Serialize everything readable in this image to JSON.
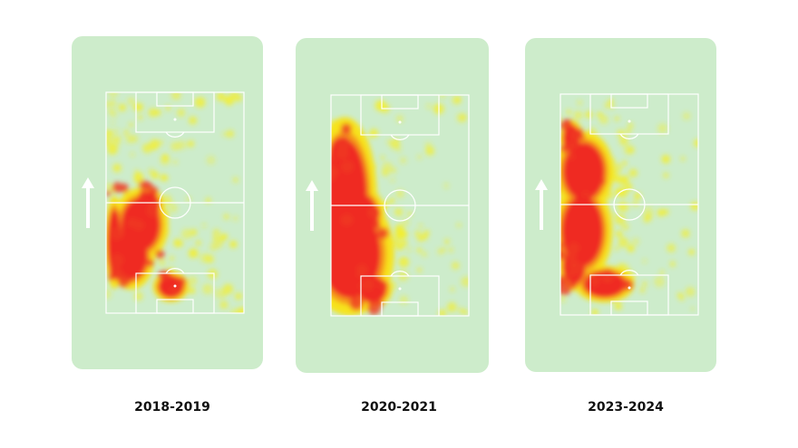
{
  "panels": [
    {
      "label": "2018-2019"
    },
    {
      "label": "2020-2021"
    },
    {
      "label": "2023-2024"
    }
  ]
}
